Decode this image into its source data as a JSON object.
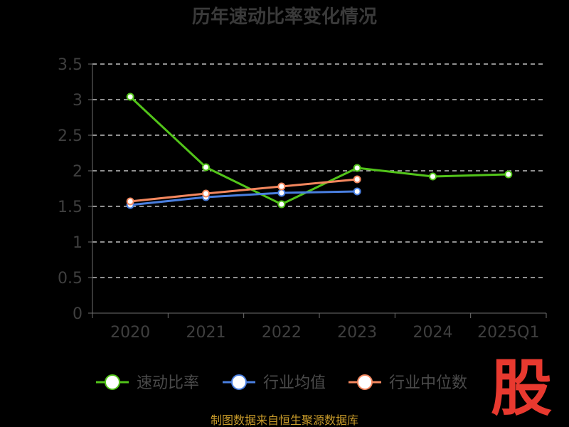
{
  "chart_data": {
    "type": "line",
    "title": "历年速动比率变化情况",
    "categories": [
      "2020",
      "2021",
      "2022",
      "2023",
      "2024",
      "2025Q1"
    ],
    "y_ticks": [
      "0",
      "0.5",
      "1",
      "1.5",
      "2",
      "2.5",
      "3",
      "3.5"
    ],
    "ylim": [
      0,
      3.5
    ],
    "grid": true,
    "legend_position": "bottom",
    "series": [
      {
        "name": "速动比率",
        "color": "#52c41a",
        "values": [
          3.04,
          2.05,
          1.53,
          2.04,
          1.92,
          1.95
        ]
      },
      {
        "name": "行业均值",
        "color": "#4a7fe0",
        "values": [
          1.52,
          1.63,
          1.69,
          1.71,
          null,
          null
        ]
      },
      {
        "name": "行业中位数",
        "color": "#f4875e",
        "values": [
          1.57,
          1.68,
          1.78,
          1.88,
          null,
          null
        ]
      }
    ]
  },
  "source": "制图数据来自恒生聚源数据库",
  "watermark": "股"
}
